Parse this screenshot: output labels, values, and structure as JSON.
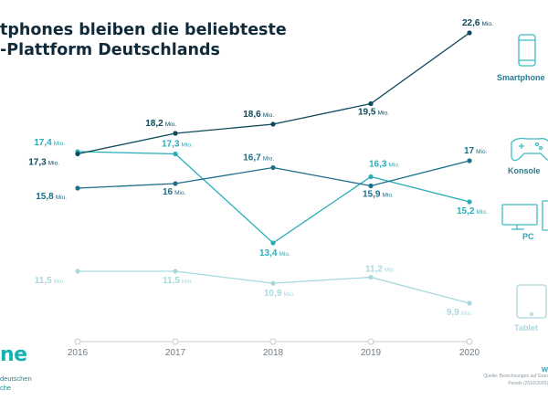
{
  "title": {
    "line1": "tphones bleiben die beliebteste",
    "line2": "-Plattform Deutschlands"
  },
  "brand": {
    "logo_text": "ne",
    "line1": "deutschen",
    "line2": "che",
    "web": "w"
  },
  "source": {
    "line1": "Quelle: Berechnungen auf Grun",
    "line2": "Panels (2016/2020)"
  },
  "colors": {
    "smartphone": "#0d4a5c",
    "konsole": "#1c6f89",
    "pc": "#29aeb9",
    "tablet": "#a9d9de",
    "axis": "#c9c9c9",
    "icon": "#3fbcc2"
  },
  "chart_data": {
    "type": "line",
    "x": [
      "2016",
      "2017",
      "2018",
      "2019",
      "2020"
    ],
    "value_suffix": "Mio.",
    "series": [
      {
        "name": "Smartphone",
        "key": "smartphone",
        "icon": "smartphone-icon",
        "values": [
          17.3,
          18.2,
          18.6,
          19.5,
          22.6
        ],
        "labels": [
          "17,3",
          "18,2",
          "18,6",
          "19,5",
          "22,6"
        ]
      },
      {
        "name": "Konsole",
        "key": "konsole",
        "icon": "gamepad-icon",
        "values": [
          15.8,
          16,
          16.7,
          15.9,
          17
        ],
        "labels": [
          "15,8",
          "16",
          "16,7",
          "15,9",
          "17"
        ]
      },
      {
        "name": "PC",
        "key": "pc",
        "icon": "computer-icon",
        "values": [
          17.4,
          17.3,
          13.4,
          16.3,
          15.2
        ],
        "labels": [
          "17,4",
          "17,3",
          "13,4",
          "16,3",
          "15,2"
        ]
      },
      {
        "name": "Tablet",
        "key": "tablet",
        "icon": "tablet-icon",
        "values": [
          11.5,
          11.5,
          10.9,
          11.2,
          9.9
        ],
        "labels": [
          "11,5",
          "11,5",
          "10,9",
          "11,2",
          "9,9"
        ]
      }
    ]
  }
}
